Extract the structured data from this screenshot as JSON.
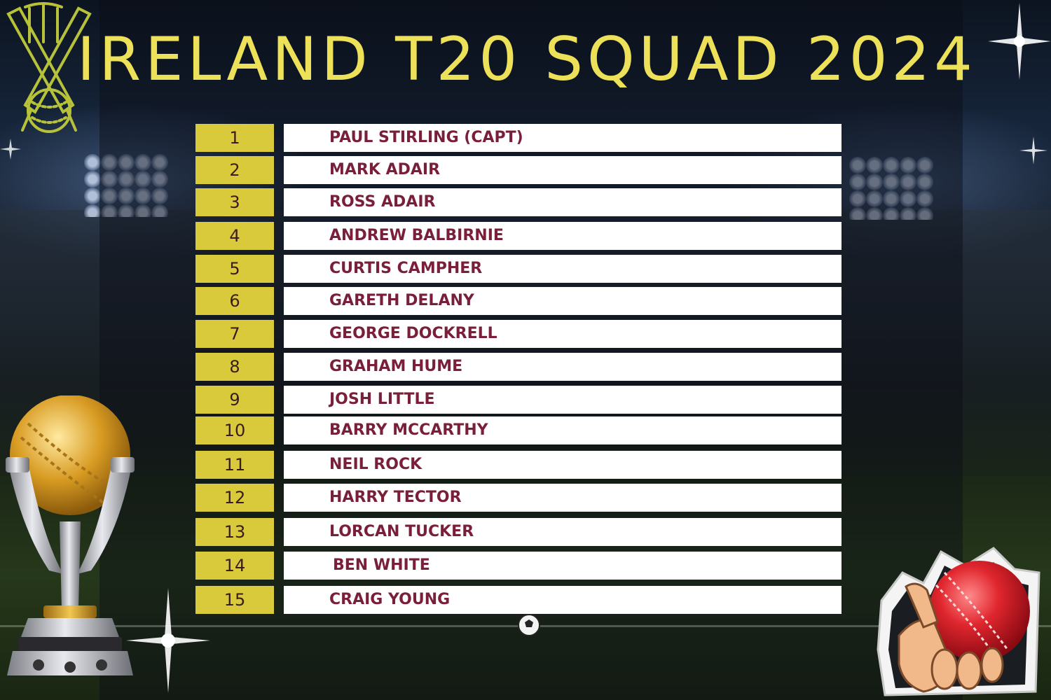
{
  "header": {
    "title": "IRELAND T20 SQUAD 2024"
  },
  "squad": [
    {
      "number": "1",
      "name": "PAUL STIRLING (CAPT)"
    },
    {
      "number": "2",
      "name": "MARK ADAIR"
    },
    {
      "number": "3",
      "name": "ROSS ADAIR"
    },
    {
      "number": "4",
      "name": "ANDREW BALBIRNIE"
    },
    {
      "number": "5",
      "name": "CURTIS CAMPHER"
    },
    {
      "number": "6",
      "name": "GARETH DELANY"
    },
    {
      "number": "7",
      "name": "GEORGE DOCKRELL"
    },
    {
      "number": "8",
      "name": "GRAHAM HUME"
    },
    {
      "number": "9",
      "name": "JOSH LITTLE"
    },
    {
      "number": "10",
      "name": "BARRY MCCARTHY"
    },
    {
      "number": "11",
      "name": "NEIL ROCK"
    },
    {
      "number": "12",
      "name": "HARRY TECTOR"
    },
    {
      "number": "13",
      "name": "LORCAN TUCKER"
    },
    {
      "number": "14",
      "name": "BEN WHITE"
    },
    {
      "number": "15",
      "name": "CRAIG YOUNG"
    }
  ],
  "colors": {
    "title": "#ece158",
    "number_cell": "#d8ca3a",
    "name_text": "#7a1f3a",
    "name_cell": "#ffffff"
  },
  "icons": {
    "logo": "cricket-bats-stumps-ball-icon",
    "trophy": "world-cup-trophy-icon",
    "ball": "hand-holding-cricket-ball-icon",
    "sparkle": "sparkle-icon",
    "football": "football-icon"
  }
}
